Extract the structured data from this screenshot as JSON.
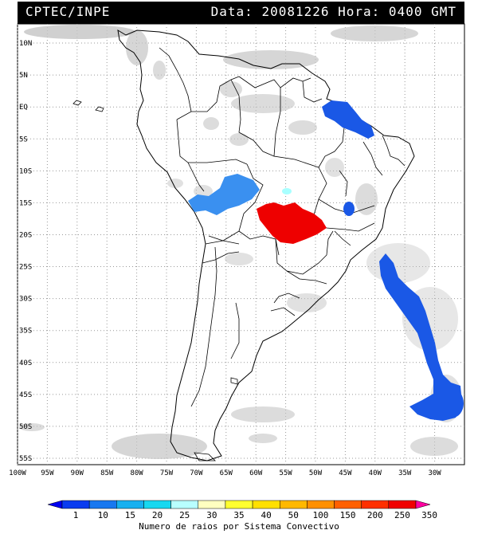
{
  "header": {
    "left": "CPTEC/INPE",
    "right": "Data: 20081226 Hora: 0400 GMT"
  },
  "map": {
    "lon_range": [
      -100,
      -25
    ],
    "lat_range": [
      -56,
      13
    ],
    "lat_ticks": [
      "10N",
      "5N",
      "EQ",
      "5S",
      "10S",
      "15S",
      "20S",
      "25S",
      "30S",
      "35S",
      "40S",
      "45S",
      "50S",
      "55S"
    ],
    "lon_ticks": [
      "100W",
      "95W",
      "90W",
      "85W",
      "80W",
      "75W",
      "70W",
      "65W",
      "60W",
      "55W",
      "50W",
      "45W",
      "40W",
      "35W",
      "30W"
    ],
    "colors": {
      "satellite_cloud": "#c0c0c0",
      "blue": "#1a58e6",
      "light_blue": "#3a90f0",
      "cyan": "#a8ffff",
      "red": "#ee0000"
    }
  },
  "legend": {
    "labels": [
      "1",
      "10",
      "15",
      "20",
      "25",
      "30",
      "35",
      "40",
      "50",
      "100",
      "150",
      "200",
      "250",
      "350"
    ],
    "colors": [
      "#0000f0",
      "#0a3cf0",
      "#1878f0",
      "#18b0f0",
      "#18d8f0",
      "#b8ffff",
      "#ffffc0",
      "#ffff30",
      "#ffe000",
      "#ffb800",
      "#ff9000",
      "#ff6000",
      "#ff3000",
      "#f00000",
      "#ff00a0"
    ],
    "caption": "Numero de raios por Sistema Convectivo"
  }
}
